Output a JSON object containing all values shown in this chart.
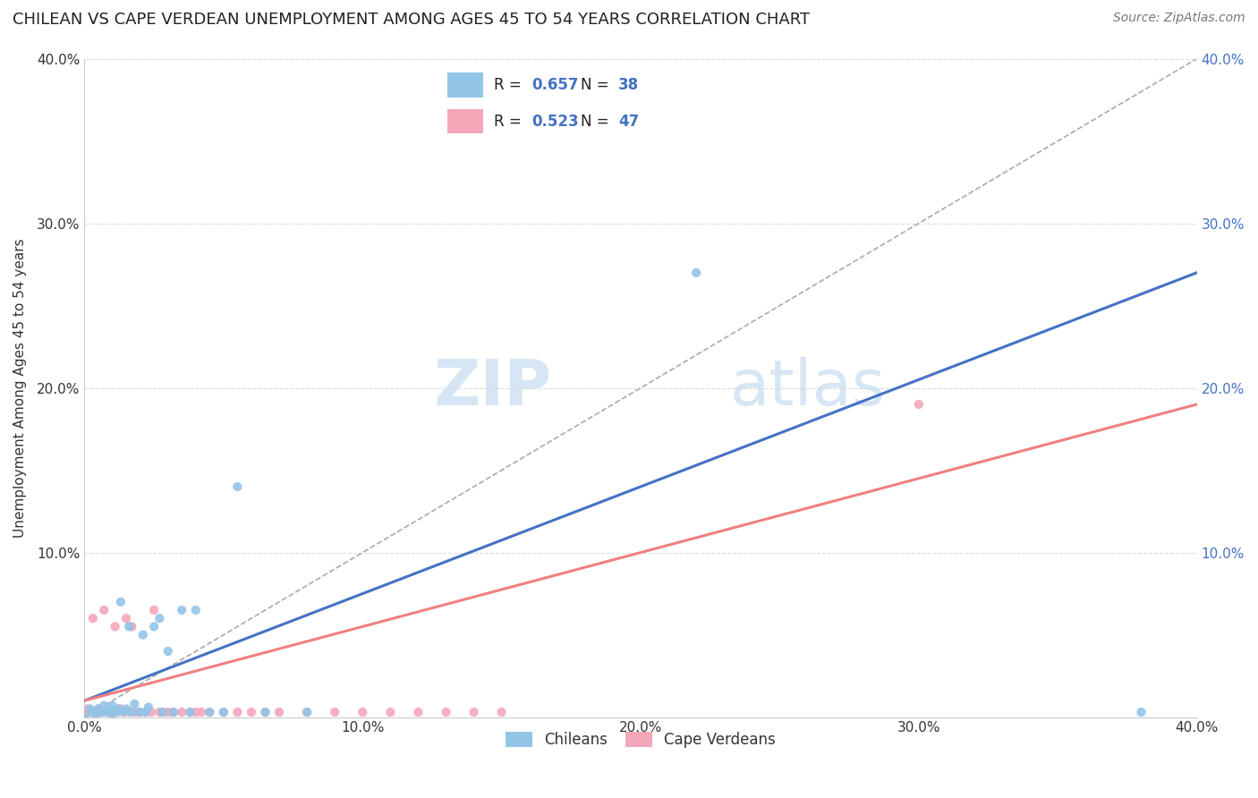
{
  "title": "CHILEAN VS CAPE VERDEAN UNEMPLOYMENT AMONG AGES 45 TO 54 YEARS CORRELATION CHART",
  "source": "Source: ZipAtlas.com",
  "ylabel": "Unemployment Among Ages 45 to 54 years",
  "xlim": [
    0,
    0.4
  ],
  "ylim": [
    0,
    0.4
  ],
  "xticks": [
    0.0,
    0.1,
    0.2,
    0.3,
    0.4
  ],
  "yticks": [
    0.0,
    0.1,
    0.2,
    0.3,
    0.4
  ],
  "xticklabels": [
    "0.0%",
    "10.0%",
    "20.0%",
    "30.0%",
    "40.0%"
  ],
  "yticklabels": [
    "",
    "10.0%",
    "20.0%",
    "30.0%",
    "40.0%"
  ],
  "right_yticklabels": [
    "10.0%",
    "20.0%",
    "30.0%",
    "40.0%"
  ],
  "right_yticks": [
    0.1,
    0.2,
    0.3,
    0.4
  ],
  "blue_color": "#92C5E8",
  "pink_color": "#F4A7B9",
  "blue_line_color": "#4472C4",
  "pink_line_color": "#F08080",
  "ref_line_color": "#AAAAAA",
  "blue_scatter_x": [
    0.0,
    0.002,
    0.003,
    0.004,
    0.005,
    0.006,
    0.007,
    0.008,
    0.009,
    0.01,
    0.01,
    0.011,
    0.012,
    0.013,
    0.014,
    0.015,
    0.016,
    0.017,
    0.018,
    0.02,
    0.021,
    0.022,
    0.023,
    0.025,
    0.027,
    0.028,
    0.03,
    0.032,
    0.035,
    0.038,
    0.04,
    0.045,
    0.05,
    0.055,
    0.065,
    0.08,
    0.22,
    0.38
  ],
  "blue_scatter_y": [
    0.0,
    0.005,
    0.003,
    0.002,
    0.005,
    0.003,
    0.007,
    0.003,
    0.004,
    0.002,
    0.007,
    0.003,
    0.005,
    0.07,
    0.003,
    0.005,
    0.055,
    0.003,
    0.008,
    0.003,
    0.05,
    0.003,
    0.006,
    0.055,
    0.06,
    0.003,
    0.04,
    0.003,
    0.065,
    0.003,
    0.065,
    0.003,
    0.003,
    0.14,
    0.003,
    0.003,
    0.27,
    0.003
  ],
  "pink_scatter_x": [
    0.0,
    0.001,
    0.002,
    0.003,
    0.004,
    0.005,
    0.006,
    0.007,
    0.008,
    0.009,
    0.01,
    0.011,
    0.012,
    0.013,
    0.014,
    0.015,
    0.016,
    0.017,
    0.018,
    0.019,
    0.02,
    0.022,
    0.024,
    0.025,
    0.027,
    0.028,
    0.03,
    0.032,
    0.035,
    0.038,
    0.04,
    0.042,
    0.045,
    0.05,
    0.055,
    0.06,
    0.065,
    0.07,
    0.08,
    0.09,
    0.1,
    0.11,
    0.12,
    0.13,
    0.14,
    0.15,
    0.3
  ],
  "pink_scatter_y": [
    0.0,
    0.005,
    0.003,
    0.06,
    0.002,
    0.005,
    0.003,
    0.065,
    0.003,
    0.004,
    0.002,
    0.055,
    0.003,
    0.005,
    0.003,
    0.06,
    0.003,
    0.055,
    0.003,
    0.003,
    0.003,
    0.003,
    0.003,
    0.065,
    0.003,
    0.003,
    0.003,
    0.003,
    0.003,
    0.003,
    0.003,
    0.003,
    0.003,
    0.003,
    0.003,
    0.003,
    0.003,
    0.003,
    0.003,
    0.003,
    0.003,
    0.003,
    0.003,
    0.003,
    0.003,
    0.003,
    0.19
  ],
  "blue_trend_x": [
    0.0,
    0.4
  ],
  "blue_trend_y": [
    0.01,
    0.27
  ],
  "pink_trend_x": [
    0.0,
    0.4
  ],
  "pink_trend_y": [
    0.01,
    0.19
  ],
  "ref_line_x": [
    0.0,
    0.4
  ],
  "ref_line_y": [
    0.0,
    0.4
  ],
  "watermark_zip": "ZIP",
  "watermark_atlas": "atlas",
  "background_color": "#FFFFFF",
  "grid_color": "#DDDDDD",
  "title_fontsize": 13,
  "axis_label_fontsize": 11,
  "tick_fontsize": 11,
  "source_fontsize": 10
}
